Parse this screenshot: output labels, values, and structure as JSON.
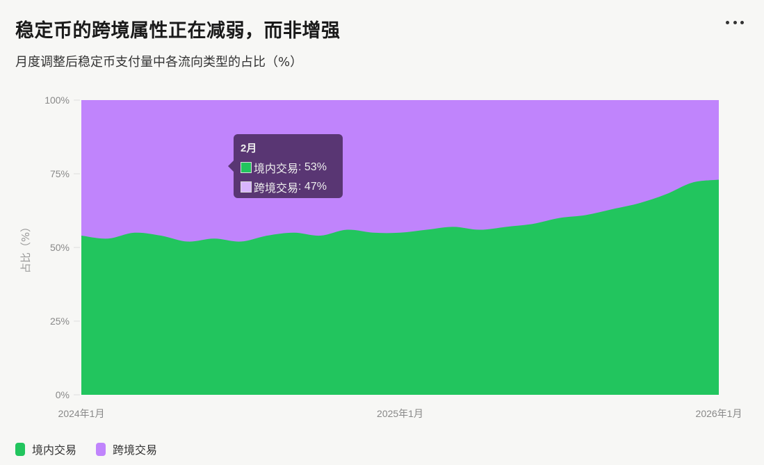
{
  "header": {
    "title": "稳定币的跨境属性正在减弱，而非增强",
    "subtitle": "月度调整后稳定币支付量中各流向类型的占比（%）",
    "menu_icon": "more-horizontal-icon"
  },
  "colors": {
    "domestic": "#22c55e",
    "cross_border": "#c084fc",
    "background": "#f7f7f5",
    "tooltip_bg": "#46285a"
  },
  "tooltip": {
    "title": "2月",
    "rows": [
      {
        "label": "境内交易",
        "value": "53%",
        "color": "#22c55e"
      },
      {
        "label": "跨境交易",
        "value": "47%",
        "color": "#d8b4fe"
      }
    ]
  },
  "legend": [
    {
      "label": "境内交易",
      "color": "#22c55e"
    },
    {
      "label": "跨境交易",
      "color": "#c084fc"
    }
  ],
  "axis": {
    "y_ticks": [
      "0%",
      "25%",
      "50%",
      "75%",
      "100%"
    ],
    "x_ticks": [
      "2024年1月",
      "2025年1月",
      "2026年1月"
    ],
    "y_label": "占比（%）"
  },
  "chart_data": {
    "type": "area",
    "stacked": true,
    "normalized_percent": true,
    "title": "稳定币的跨境属性正在减弱，而非增强",
    "subtitle": "月度调整后稳定币支付量中各流向类型的占比（%）",
    "xlabel": "",
    "ylabel": "占比（%）",
    "ylim": [
      0,
      100
    ],
    "x": [
      "2024-01",
      "2024-02",
      "2024-03",
      "2024-04",
      "2024-05",
      "2024-06",
      "2024-07",
      "2024-08",
      "2024-09",
      "2024-10",
      "2024-11",
      "2024-12",
      "2025-01",
      "2025-02",
      "2025-03",
      "2025-04",
      "2025-05",
      "2025-06",
      "2025-07",
      "2025-08",
      "2025-09",
      "2025-10",
      "2025-11",
      "2025-12",
      "2026-01"
    ],
    "x_tick_labels": [
      "2024年1月",
      "2025年1月",
      "2026年1月"
    ],
    "y_tick_labels": [
      "0%",
      "25%",
      "50%",
      "75%",
      "100%"
    ],
    "series": [
      {
        "name": "境内交易",
        "color": "#22c55e",
        "values": [
          54,
          53,
          55,
          54,
          52,
          53,
          52,
          54,
          55,
          54,
          56,
          55,
          55,
          56,
          57,
          56,
          57,
          58,
          60,
          61,
          63,
          65,
          68,
          72,
          73
        ]
      },
      {
        "name": "跨境交易",
        "color": "#c084fc",
        "values": [
          46,
          47,
          45,
          46,
          48,
          47,
          48,
          46,
          45,
          46,
          44,
          45,
          45,
          44,
          43,
          44,
          43,
          42,
          40,
          39,
          37,
          35,
          32,
          28,
          27
        ]
      }
    ],
    "legend_position": "bottom-left",
    "grid": false,
    "annotation": {
      "tooltip_month": "2月",
      "境内交易": "53%",
      "跨境交易": "47%"
    }
  }
}
